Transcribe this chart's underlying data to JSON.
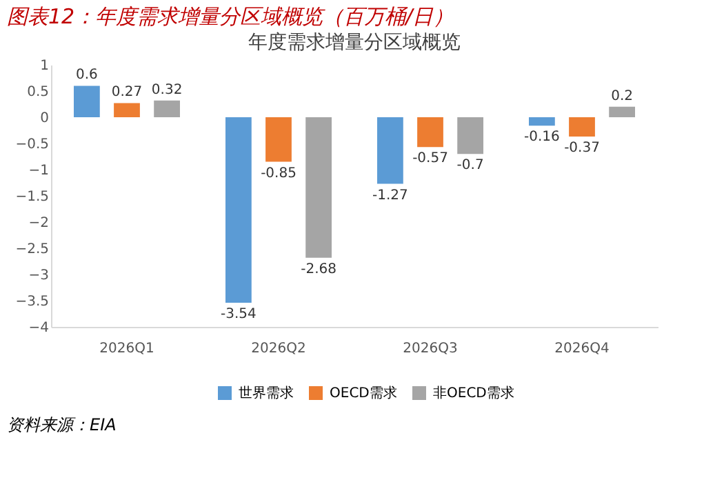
{
  "chart_data": {
    "type": "bar",
    "title": "图表12：年度需求增量分区域概览（百万桶/日）",
    "subtitle": "年度需求增量分区域概览",
    "categories": [
      "2026Q1",
      "2026Q2",
      "2026Q3",
      "2026Q4"
    ],
    "series": [
      {
        "name": "世界需求",
        "color": "#5b9bd5",
        "values": [
          0.6,
          -3.54,
          -1.27,
          -0.16
        ]
      },
      {
        "name": "OECD需求",
        "color": "#ed7d31",
        "values": [
          0.27,
          -0.85,
          -0.57,
          -0.37
        ]
      },
      {
        "name": "非OECD需求",
        "color": "#a5a5a5",
        "values": [
          0.32,
          -2.68,
          -0.7,
          0.2
        ]
      }
    ],
    "ylim": [
      -4,
      1
    ],
    "yticks": [
      1,
      0.5,
      0,
      -0.5,
      -1,
      -1.5,
      -2,
      -2.5,
      -3,
      -3.5,
      -4
    ],
    "grid": false,
    "legend": "bottom",
    "data_labels": true,
    "annotations": [
      "资料来源：EIA"
    ]
  }
}
